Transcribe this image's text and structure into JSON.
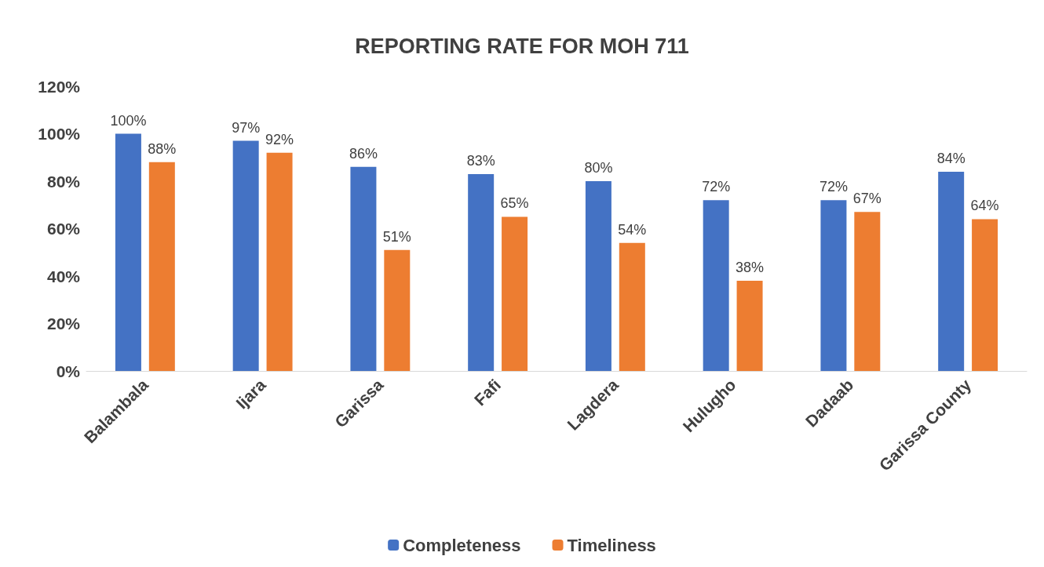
{
  "chart_data": {
    "type": "bar",
    "title": "REPORTING RATE FOR MOH 711",
    "categories": [
      "Balambala",
      "Ijara",
      "Garissa",
      "Fafi",
      "Lagdera",
      "Hulugho",
      "Dadaab",
      "Garissa County"
    ],
    "series": [
      {
        "name": "Completeness",
        "color": "#4472c4",
        "values": [
          100,
          97,
          86,
          83,
          80,
          72,
          72,
          84
        ],
        "value_labels": [
          "100%",
          "97%",
          "86%",
          "83%",
          "80%",
          "72%",
          "72%",
          "84%"
        ]
      },
      {
        "name": "Timeliness",
        "color": "#ed7d31",
        "values": [
          88,
          92,
          51,
          65,
          54,
          38,
          67,
          64
        ],
        "value_labels": [
          "88%",
          "92%",
          "51%",
          "65%",
          "54%",
          "38%",
          "67%",
          "64%"
        ]
      }
    ],
    "ylim": [
      0,
      120
    ],
    "yticks": [
      {
        "value": 0,
        "label": "0%"
      },
      {
        "value": 20,
        "label": "20%"
      },
      {
        "value": 40,
        "label": "40%"
      },
      {
        "value": 60,
        "label": "60%"
      },
      {
        "value": 80,
        "label": "80%"
      },
      {
        "value": 100,
        "label": "100%"
      },
      {
        "value": 120,
        "label": "120%"
      }
    ],
    "grid": false,
    "legend": "bottom"
  }
}
